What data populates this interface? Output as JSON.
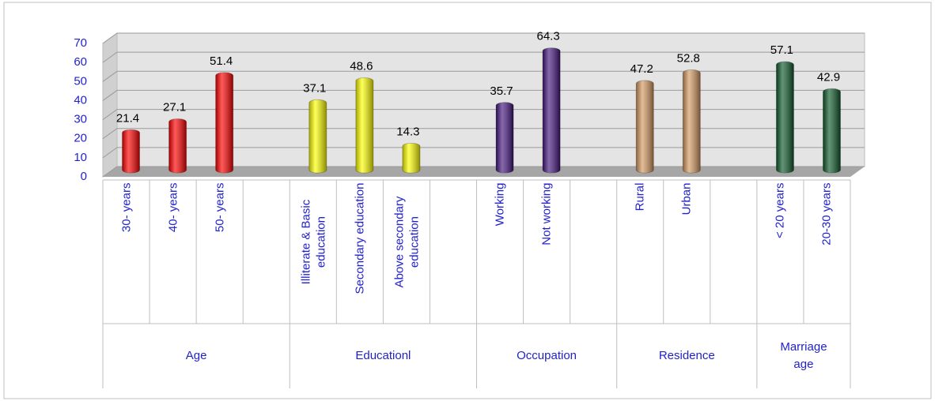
{
  "chart_data": {
    "type": "bar",
    "categories": [
      "30- years",
      "40- years",
      "50- years",
      null,
      "Illiterate & Basic education",
      "Secondary education",
      "Above secondary education",
      null,
      "Working",
      "Not working",
      null,
      "Rural",
      "Urban",
      null,
      "< 20 years",
      "20-30 years"
    ],
    "values": [
      21.4,
      27.1,
      51.4,
      null,
      37.1,
      48.6,
      14.3,
      null,
      35.7,
      64.3,
      null,
      47.2,
      52.8,
      null,
      57.1,
      42.9
    ],
    "groups": [
      {
        "name": "Age",
        "count": 4,
        "color": "#ff0000"
      },
      {
        "name": "Educationl",
        "count": 4,
        "color": "#ffff00"
      },
      {
        "name": "Occupation",
        "count": 3,
        "color": "#44167e"
      },
      {
        "name": "Residence",
        "count": 3,
        "color": "#d59a62"
      },
      {
        "name": "Marriage age",
        "count": 2,
        "color": "#0f5a2b"
      }
    ],
    "ylim": [
      0,
      70
    ],
    "yticks": [
      0,
      10,
      20,
      30,
      40,
      50,
      60,
      70
    ],
    "grid": true
  }
}
